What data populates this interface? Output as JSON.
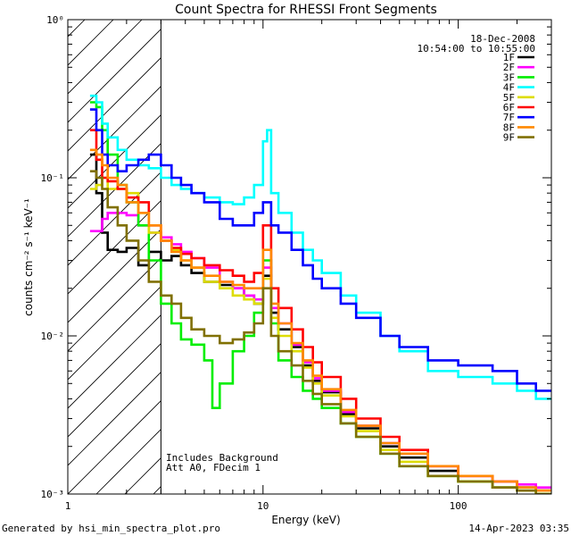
{
  "chart_data": {
    "type": "line",
    "title": "Count Spectra for RHESSI Front Segments",
    "date": "18-Dec-2008",
    "time_range": "10:54:00 to 10:55:00",
    "xlabel": "Energy (keV)",
    "ylabel": "counts cm⁻² s⁻¹ keV⁻¹",
    "xscale": "log",
    "yscale": "log",
    "xlim": [
      1.0,
      300.0
    ],
    "ylim": [
      0.001,
      1.0
    ],
    "x_ticks": [
      {
        "value": 1,
        "label": "1"
      },
      {
        "value": 10,
        "label": "10"
      },
      {
        "value": 100,
        "label": "100"
      }
    ],
    "y_ticks": [
      {
        "value": 1,
        "label": "10⁰"
      },
      {
        "value": 0.1,
        "label": "10⁻¹"
      },
      {
        "value": 0.01,
        "label": "10⁻²"
      },
      {
        "value": 0.001,
        "label": "10⁻³"
      }
    ],
    "hatched_region": [
      1.0,
      3.0
    ],
    "annotations": [
      "Includes Background",
      "Att A0, FDecim 1"
    ],
    "legend_position": "top-right",
    "series": [
      {
        "name": "1F",
        "color": "#000000",
        "points": [
          [
            1.3,
            0.14
          ],
          [
            1.4,
            0.08
          ],
          [
            1.5,
            0.045
          ],
          [
            1.6,
            0.035
          ],
          [
            1.8,
            0.034
          ],
          [
            2.0,
            0.036
          ],
          [
            2.3,
            0.028
          ],
          [
            2.6,
            0.034
          ],
          [
            3.0,
            0.03
          ],
          [
            3.4,
            0.032
          ],
          [
            3.8,
            0.028
          ],
          [
            4.3,
            0.025
          ],
          [
            5,
            0.022
          ],
          [
            6,
            0.021
          ],
          [
            7,
            0.02
          ],
          [
            8,
            0.018
          ],
          [
            9,
            0.016
          ],
          [
            10,
            0.024
          ],
          [
            11,
            0.014
          ],
          [
            12,
            0.011
          ],
          [
            14,
            0.0085
          ],
          [
            16,
            0.0065
          ],
          [
            18,
            0.0052
          ],
          [
            20,
            0.0044
          ],
          [
            25,
            0.0032
          ],
          [
            30,
            0.0026
          ],
          [
            40,
            0.002
          ],
          [
            50,
            0.0017
          ],
          [
            70,
            0.0014
          ],
          [
            100,
            0.0012
          ],
          [
            150,
            0.0011
          ],
          [
            200,
            0.0011
          ],
          [
            250,
            0.00105
          ]
        ]
      },
      {
        "name": "2F",
        "color": "#ff00ff",
        "points": [
          [
            1.3,
            0.046
          ],
          [
            1.4,
            0.046
          ],
          [
            1.5,
            0.055
          ],
          [
            1.6,
            0.06
          ],
          [
            1.8,
            0.06
          ],
          [
            2.0,
            0.058
          ],
          [
            2.3,
            0.05
          ],
          [
            2.6,
            0.045
          ],
          [
            3.0,
            0.042
          ],
          [
            3.4,
            0.038
          ],
          [
            3.8,
            0.034
          ],
          [
            4.3,
            0.031
          ],
          [
            5,
            0.027
          ],
          [
            6,
            0.022
          ],
          [
            7,
            0.02
          ],
          [
            8,
            0.018
          ],
          [
            9,
            0.017
          ],
          [
            10,
            0.027
          ],
          [
            11,
            0.015
          ],
          [
            12,
            0.012
          ],
          [
            14,
            0.0088
          ],
          [
            16,
            0.0068
          ],
          [
            18,
            0.0054
          ],
          [
            20,
            0.0045
          ],
          [
            25,
            0.0033
          ],
          [
            30,
            0.0027
          ],
          [
            40,
            0.0021
          ],
          [
            50,
            0.0018
          ],
          [
            70,
            0.0015
          ],
          [
            100,
            0.0013
          ],
          [
            150,
            0.0012
          ],
          [
            200,
            0.00115
          ],
          [
            250,
            0.0011
          ]
        ]
      },
      {
        "name": "3F",
        "color": "#00ee00",
        "points": [
          [
            1.3,
            0.3
          ],
          [
            1.4,
            0.28
          ],
          [
            1.5,
            0.2
          ],
          [
            1.6,
            0.14
          ],
          [
            1.8,
            0.09
          ],
          [
            2.0,
            0.07
          ],
          [
            2.3,
            0.05
          ],
          [
            2.6,
            0.03
          ],
          [
            3.0,
            0.016
          ],
          [
            3.4,
            0.012
          ],
          [
            3.8,
            0.0095
          ],
          [
            4.3,
            0.0088
          ],
          [
            5,
            0.007
          ],
          [
            5.5,
            0.0035
          ],
          [
            6,
            0.005
          ],
          [
            7,
            0.008
          ],
          [
            8,
            0.01
          ],
          [
            9,
            0.014
          ],
          [
            10,
            0.03
          ],
          [
            11,
            0.012
          ],
          [
            12,
            0.007
          ],
          [
            14,
            0.0055
          ],
          [
            16,
            0.0045
          ],
          [
            18,
            0.004
          ],
          [
            20,
            0.0035
          ],
          [
            25,
            0.0028
          ],
          [
            30,
            0.0023
          ],
          [
            40,
            0.0018
          ],
          [
            50,
            0.0015
          ],
          [
            70,
            0.0013
          ],
          [
            100,
            0.0012
          ],
          [
            150,
            0.0011
          ],
          [
            200,
            0.00105
          ],
          [
            250,
            0.001
          ]
        ]
      },
      {
        "name": "4F",
        "color": "#00ffff",
        "points": [
          [
            1.3,
            0.33
          ],
          [
            1.4,
            0.3
          ],
          [
            1.5,
            0.22
          ],
          [
            1.6,
            0.18
          ],
          [
            1.8,
            0.15
          ],
          [
            2.0,
            0.13
          ],
          [
            2.3,
            0.12
          ],
          [
            2.6,
            0.115
          ],
          [
            3.0,
            0.1
          ],
          [
            3.4,
            0.09
          ],
          [
            3.8,
            0.085
          ],
          [
            4.3,
            0.08
          ],
          [
            5,
            0.075
          ],
          [
            6,
            0.07
          ],
          [
            7,
            0.068
          ],
          [
            8,
            0.075
          ],
          [
            9,
            0.09
          ],
          [
            10,
            0.17
          ],
          [
            10.5,
            0.2
          ],
          [
            11,
            0.08
          ],
          [
            12,
            0.06
          ],
          [
            14,
            0.045
          ],
          [
            16,
            0.035
          ],
          [
            18,
            0.03
          ],
          [
            20,
            0.025
          ],
          [
            25,
            0.018
          ],
          [
            30,
            0.014
          ],
          [
            40,
            0.01
          ],
          [
            50,
            0.008
          ],
          [
            70,
            0.006
          ],
          [
            100,
            0.0055
          ],
          [
            150,
            0.005
          ],
          [
            200,
            0.0045
          ],
          [
            250,
            0.004
          ]
        ]
      },
      {
        "name": "5F",
        "color": "#dddd00",
        "points": [
          [
            1.3,
            0.085
          ],
          [
            1.4,
            0.09
          ],
          [
            1.5,
            0.1
          ],
          [
            1.6,
            0.085
          ],
          [
            1.8,
            0.085
          ],
          [
            2.0,
            0.08
          ],
          [
            2.3,
            0.06
          ],
          [
            2.6,
            0.045
          ],
          [
            3.0,
            0.04
          ],
          [
            3.4,
            0.035
          ],
          [
            3.8,
            0.03
          ],
          [
            4.3,
            0.027
          ],
          [
            5,
            0.022
          ],
          [
            6,
            0.02
          ],
          [
            7,
            0.018
          ],
          [
            8,
            0.017
          ],
          [
            9,
            0.016
          ],
          [
            10,
            0.023
          ],
          [
            11,
            0.013
          ],
          [
            12,
            0.01
          ],
          [
            14,
            0.008
          ],
          [
            16,
            0.0063
          ],
          [
            18,
            0.005
          ],
          [
            20,
            0.0042
          ],
          [
            25,
            0.0031
          ],
          [
            30,
            0.0025
          ],
          [
            40,
            0.0019
          ],
          [
            50,
            0.0016
          ],
          [
            70,
            0.0013
          ],
          [
            100,
            0.0012
          ],
          [
            150,
            0.0011
          ],
          [
            200,
            0.00105
          ],
          [
            250,
            0.001
          ]
        ]
      },
      {
        "name": "6F",
        "color": "#ff0000",
        "points": [
          [
            1.3,
            0.2
          ],
          [
            1.4,
            0.13
          ],
          [
            1.5,
            0.1
          ],
          [
            1.6,
            0.095
          ],
          [
            1.8,
            0.085
          ],
          [
            2.0,
            0.075
          ],
          [
            2.3,
            0.07
          ],
          [
            2.6,
            0.05
          ],
          [
            3.0,
            0.04
          ],
          [
            3.4,
            0.036
          ],
          [
            3.8,
            0.033
          ],
          [
            4.3,
            0.031
          ],
          [
            5,
            0.028
          ],
          [
            6,
            0.026
          ],
          [
            7,
            0.024
          ],
          [
            8,
            0.022
          ],
          [
            9,
            0.025
          ],
          [
            10,
            0.05
          ],
          [
            11,
            0.02
          ],
          [
            12,
            0.015
          ],
          [
            14,
            0.011
          ],
          [
            16,
            0.0085
          ],
          [
            18,
            0.0068
          ],
          [
            20,
            0.0055
          ],
          [
            25,
            0.004
          ],
          [
            30,
            0.003
          ],
          [
            40,
            0.0023
          ],
          [
            50,
            0.0019
          ],
          [
            70,
            0.0015
          ],
          [
            100,
            0.0013
          ],
          [
            150,
            0.0012
          ],
          [
            200,
            0.0011
          ],
          [
            250,
            0.00105
          ]
        ]
      },
      {
        "name": "7F",
        "color": "#0000ff",
        "points": [
          [
            1.3,
            0.27
          ],
          [
            1.4,
            0.2
          ],
          [
            1.5,
            0.14
          ],
          [
            1.6,
            0.12
          ],
          [
            1.8,
            0.11
          ],
          [
            2.0,
            0.12
          ],
          [
            2.3,
            0.13
          ],
          [
            2.6,
            0.14
          ],
          [
            3.0,
            0.12
          ],
          [
            3.4,
            0.1
          ],
          [
            3.8,
            0.09
          ],
          [
            4.3,
            0.08
          ],
          [
            5,
            0.07
          ],
          [
            6,
            0.055
          ],
          [
            7,
            0.05
          ],
          [
            8,
            0.05
          ],
          [
            9,
            0.06
          ],
          [
            10,
            0.07
          ],
          [
            11,
            0.05
          ],
          [
            12,
            0.045
          ],
          [
            14,
            0.035
          ],
          [
            16,
            0.028
          ],
          [
            18,
            0.023
          ],
          [
            20,
            0.02
          ],
          [
            25,
            0.016
          ],
          [
            30,
            0.013
          ],
          [
            40,
            0.01
          ],
          [
            50,
            0.0085
          ],
          [
            70,
            0.007
          ],
          [
            100,
            0.0065
          ],
          [
            150,
            0.006
          ],
          [
            200,
            0.005
          ],
          [
            250,
            0.0045
          ]
        ]
      },
      {
        "name": "8F",
        "color": "#ff8800",
        "points": [
          [
            1.3,
            0.15
          ],
          [
            1.4,
            0.14
          ],
          [
            1.5,
            0.12
          ],
          [
            1.6,
            0.1
          ],
          [
            1.8,
            0.09
          ],
          [
            2.0,
            0.07
          ],
          [
            2.3,
            0.06
          ],
          [
            2.6,
            0.05
          ],
          [
            3.0,
            0.04
          ],
          [
            3.4,
            0.034
          ],
          [
            3.8,
            0.03
          ],
          [
            4.3,
            0.027
          ],
          [
            5,
            0.024
          ],
          [
            6,
            0.022
          ],
          [
            7,
            0.021
          ],
          [
            8,
            0.02
          ],
          [
            9,
            0.02
          ],
          [
            10,
            0.035
          ],
          [
            11,
            0.016
          ],
          [
            12,
            0.012
          ],
          [
            14,
            0.009
          ],
          [
            16,
            0.007
          ],
          [
            18,
            0.0056
          ],
          [
            20,
            0.0046
          ],
          [
            25,
            0.0034
          ],
          [
            30,
            0.0027
          ],
          [
            40,
            0.0021
          ],
          [
            50,
            0.0018
          ],
          [
            70,
            0.0015
          ],
          [
            100,
            0.0013
          ],
          [
            150,
            0.0012
          ],
          [
            200,
            0.0011
          ],
          [
            250,
            0.00105
          ]
        ]
      },
      {
        "name": "9F",
        "color": "#807000",
        "points": [
          [
            1.3,
            0.11
          ],
          [
            1.4,
            0.1
          ],
          [
            1.5,
            0.085
          ],
          [
            1.6,
            0.065
          ],
          [
            1.8,
            0.05
          ],
          [
            2.0,
            0.04
          ],
          [
            2.3,
            0.03
          ],
          [
            2.6,
            0.022
          ],
          [
            3.0,
            0.018
          ],
          [
            3.4,
            0.016
          ],
          [
            3.8,
            0.013
          ],
          [
            4.3,
            0.011
          ],
          [
            5,
            0.01
          ],
          [
            6,
            0.009
          ],
          [
            7,
            0.0095
          ],
          [
            8,
            0.0105
          ],
          [
            9,
            0.012
          ],
          [
            10,
            0.02
          ],
          [
            11,
            0.01
          ],
          [
            12,
            0.008
          ],
          [
            14,
            0.0065
          ],
          [
            16,
            0.0052
          ],
          [
            18,
            0.0043
          ],
          [
            20,
            0.0037
          ],
          [
            25,
            0.0028
          ],
          [
            30,
            0.0023
          ],
          [
            40,
            0.0018
          ],
          [
            50,
            0.0015
          ],
          [
            70,
            0.0013
          ],
          [
            100,
            0.0012
          ],
          [
            150,
            0.0011
          ],
          [
            200,
            0.00105
          ],
          [
            250,
            0.001
          ]
        ]
      }
    ]
  },
  "footer": {
    "left": "Generated by hsi_min_spectra_plot.pro",
    "right": "14-Apr-2023 03:35"
  }
}
